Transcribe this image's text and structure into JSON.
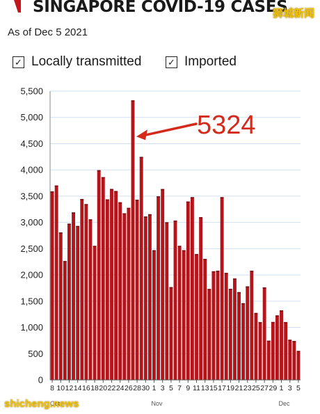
{
  "header": {
    "title": "SINGAPORE COVID-19 CASES",
    "subtitle": "As of Dec 5 2021",
    "watermark_top": "狮城新闻",
    "watermark_bottom": "shicheng.news",
    "brand_icon": "red-slash-logo-icon"
  },
  "legend": [
    {
      "label": "Locally transmitted",
      "checked": true,
      "icon": "checkbox-checked-icon"
    },
    {
      "label": "Imported",
      "checked": true,
      "icon": "checkbox-checked-icon"
    }
  ],
  "annotation": {
    "text": "5324",
    "color": "#d42a1c"
  },
  "colors": {
    "bar": "#b3151b",
    "bar_top": "#7a0d10",
    "grid": "#d0e0f0",
    "annotation": "#d42a1c"
  },
  "chart_data": {
    "type": "bar",
    "title": "SINGAPORE COVID-19 CASES",
    "subtitle": "As of Dec 5 2021",
    "xlabel": "",
    "ylabel": "",
    "ylim": [
      0,
      5500
    ],
    "yticks": [
      "0",
      "500",
      "1,000",
      "1,500",
      "2,000",
      "2,500",
      "3,000",
      "3,500",
      "4,000",
      "4,500",
      "5,000",
      "5,500"
    ],
    "grid": true,
    "x": [
      "Oct 8",
      "Oct 9",
      "Oct 10",
      "Oct 11",
      "Oct 12",
      "Oct 13",
      "Oct 14",
      "Oct 15",
      "Oct 16",
      "Oct 17",
      "Oct 18",
      "Oct 19",
      "Oct 20",
      "Oct 21",
      "Oct 22",
      "Oct 23",
      "Oct 24",
      "Oct 25",
      "Oct 26",
      "Oct 27",
      "Oct 28",
      "Oct 29",
      "Oct 30",
      "Oct 31",
      "Nov 1",
      "Nov 2",
      "Nov 3",
      "Nov 4",
      "Nov 5",
      "Nov 6",
      "Nov 7",
      "Nov 8",
      "Nov 9",
      "Nov 10",
      "Nov 11",
      "Nov 12",
      "Nov 13",
      "Nov 14",
      "Nov 15",
      "Nov 16",
      "Nov 17",
      "Nov 18",
      "Nov 19",
      "Nov 20",
      "Nov 21",
      "Nov 22",
      "Nov 23",
      "Nov 24",
      "Nov 25",
      "Nov 26",
      "Nov 27",
      "Nov 28",
      "Nov 29",
      "Nov 30",
      "Dec 1",
      "Dec 2",
      "Dec 3",
      "Dec 4",
      "Dec 5"
    ],
    "x_tick_labels": [
      "8",
      "10",
      "12",
      "14",
      "16",
      "18",
      "20",
      "22",
      "24",
      "26",
      "28",
      "30",
      "1",
      "3",
      "5",
      "7",
      "9",
      "11",
      "13",
      "15",
      "17",
      "19",
      "21",
      "23",
      "25",
      "27",
      "29",
      "1",
      "3",
      "5"
    ],
    "month_labels": [
      {
        "label": "Oct",
        "index": 0
      },
      {
        "label": "Nov",
        "index": 24
      },
      {
        "label": "Dec",
        "index": 54
      }
    ],
    "series": [
      {
        "values": [
          3590,
          3703,
          2809,
          2263,
          2976,
          3190,
          2932,
          3445,
          3348,
          3058,
          2553,
          3994,
          3862,
          3439,
          3637,
          3598,
          3383,
          3174,
          3277,
          5324,
          3432,
          4248,
          3112,
          3156,
          2470,
          3496,
          3635,
          3003,
          1767,
          3035,
          2553,
          2470,
          3397,
          3481,
          2396,
          3099,
          2304,
          1732,
          2069,
          2079,
          3481,
          2038,
          1734,
          1931,
          1672,
          1461,
          1782,
          2079,
          1275,
          1101,
          1761,
          747,
          1103,
          1228,
          1325,
          1101,
          765,
          740,
          552
        ]
      }
    ]
  }
}
